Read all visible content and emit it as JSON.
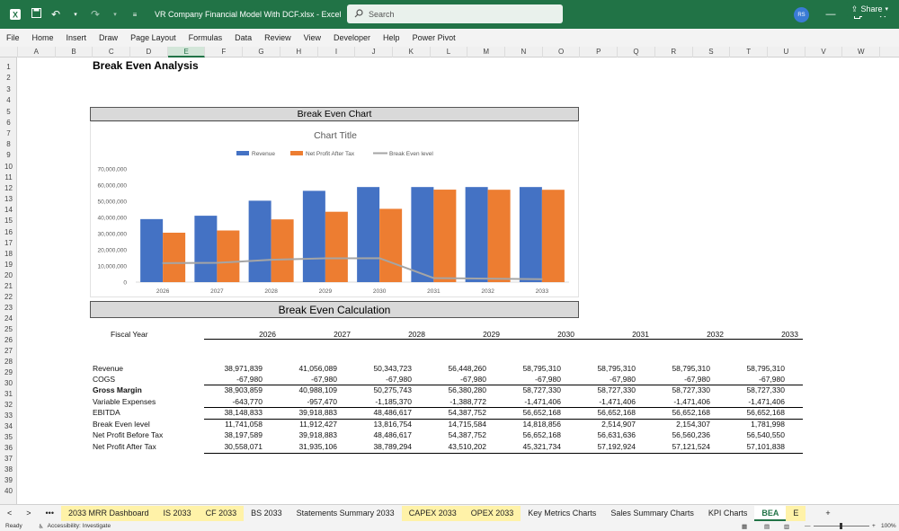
{
  "window": {
    "title": "VR Company  Financial Model With DCF.xlsx  -  Excel",
    "search_placeholder": "Search",
    "avatar_initials": "RS"
  },
  "ribbon": {
    "tabs": [
      "File",
      "Home",
      "Insert",
      "Draw",
      "Page Layout",
      "Formulas",
      "Data",
      "Review",
      "View",
      "Developer",
      "Help",
      "Power Pivot"
    ],
    "share_label": "Share"
  },
  "columns": [
    "A",
    "B",
    "C",
    "D",
    "E",
    "F",
    "G",
    "H",
    "I",
    "J",
    "K",
    "L",
    "M",
    "N",
    "O",
    "P",
    "Q",
    "R",
    "S",
    "T",
    "U",
    "V",
    "W"
  ],
  "selected_column": "E",
  "rows": [
    "1",
    "2",
    "3",
    "4",
    "5",
    "6",
    "7",
    "8",
    "9",
    "10",
    "11",
    "12",
    "13",
    "14",
    "15",
    "16",
    "17",
    "18",
    "19",
    "20",
    "21",
    "22",
    "23",
    "24",
    "25",
    "26",
    "27",
    "28",
    "29",
    "30",
    "31",
    "32",
    "33",
    "34",
    "35",
    "36",
    "37",
    "38",
    "39",
    "40"
  ],
  "sheet": {
    "title": "Break Even Analysis",
    "chart_section": "Break Even Chart",
    "calc_section": "Break Even Calculation"
  },
  "chart_data": {
    "type": "bar",
    "title": "Chart Title",
    "categories": [
      "2026",
      "2027",
      "2028",
      "2029",
      "2030",
      "2031",
      "2032",
      "2033"
    ],
    "ylim": [
      0,
      70000000
    ],
    "yticks": [
      "0",
      "10,000,000",
      "20,000,000",
      "30,000,000",
      "40,000,000",
      "50,000,000",
      "60,000,000",
      "70,000,000"
    ],
    "legend_position": "top",
    "grid": false,
    "series": [
      {
        "name": "Revenue",
        "type": "bar",
        "color": "#4472c4",
        "values": [
          38971839,
          41056089,
          50343723,
          56448260,
          58795310,
          58795310,
          58795310,
          58795310
        ]
      },
      {
        "name": "Net Profit After Tax",
        "type": "bar",
        "color": "#ed7d31",
        "values": [
          30558071,
          31935106,
          38789294,
          43510202,
          45321734,
          57192924,
          57121524,
          57101838
        ]
      },
      {
        "name": "Break Even level",
        "type": "line",
        "color": "#a5a5a5",
        "values": [
          11741058,
          11912427,
          13816754,
          14715584,
          14818856,
          2514907,
          2154307,
          1781998
        ]
      }
    ]
  },
  "table": {
    "header_label": "Fiscal Year",
    "years": [
      "2026",
      "2027",
      "2028",
      "2029",
      "2030",
      "2031",
      "2032",
      "2033"
    ],
    "rows": [
      {
        "label": "Revenue",
        "bold": false,
        "values": [
          "38,971,839",
          "41,056,089",
          "50,343,723",
          "56,448,260",
          "58,795,310",
          "58,795,310",
          "58,795,310",
          "58,795,310"
        ]
      },
      {
        "label": "COGS",
        "bold": false,
        "values": [
          "-67,980",
          "-67,980",
          "-67,980",
          "-67,980",
          "-67,980",
          "-67,980",
          "-67,980",
          "-67,980"
        ]
      },
      {
        "label": "Gross Margin",
        "bold": true,
        "values": [
          "38,903,859",
          "40,988,109",
          "50,275,743",
          "56,380,280",
          "58,727,330",
          "58,727,330",
          "58,727,330",
          "58,727,330"
        ]
      },
      {
        "label": "Variable Expenses",
        "bold": false,
        "values": [
          "-643,770",
          "-957,470",
          "-1,185,370",
          "-1,388,772",
          "-1,471,406",
          "-1,471,406",
          "-1,471,406",
          "-1,471,406"
        ]
      },
      {
        "label": "EBITDA",
        "bold": false,
        "values": [
          "38,148,833",
          "39,918,883",
          "48,486,617",
          "54,387,752",
          "56,652,168",
          "56,652,168",
          "56,652,168",
          "56,652,168"
        ]
      },
      {
        "label": "Break Even level",
        "bold": false,
        "values": [
          "11,741,058",
          "11,912,427",
          "13,816,754",
          "14,715,584",
          "14,818,856",
          "2,514,907",
          "2,154,307",
          "1,781,998"
        ]
      },
      {
        "label": "Net Profit Before Tax",
        "bold": false,
        "values": [
          "38,197,589",
          "39,918,883",
          "48,486,617",
          "54,387,752",
          "56,652,168",
          "56,631,636",
          "56,560,236",
          "56,540,550"
        ]
      },
      {
        "label": "Net Profit After Tax",
        "bold": false,
        "values": [
          "30,558,071",
          "31,935,106",
          "38,789,294",
          "43,510,202",
          "45,321,734",
          "57,192,924",
          "57,121,524",
          "57,101,838"
        ]
      }
    ]
  },
  "sheet_tabs": [
    {
      "label": "2033 MRR Dashboard",
      "style": "yel"
    },
    {
      "label": "IS 2033",
      "style": "yel"
    },
    {
      "label": "CF 2033",
      "style": "yel"
    },
    {
      "label": "BS 2033",
      "style": ""
    },
    {
      "label": "Statements Summary 2033",
      "style": ""
    },
    {
      "label": "CAPEX 2033",
      "style": "yel"
    },
    {
      "label": "OPEX 2033",
      "style": "yel"
    },
    {
      "label": "Key Metrics Charts",
      "style": ""
    },
    {
      "label": "Sales Summary Charts",
      "style": ""
    },
    {
      "label": "KPI Charts",
      "style": ""
    },
    {
      "label": "BEA",
      "style": "act"
    },
    {
      "label": "E",
      "style": "yel"
    }
  ],
  "tab_nav": {
    "prev": "<",
    "next": ">",
    "more": "•••",
    "add": "+"
  },
  "status": {
    "ready": "Ready",
    "accessibility": "Accessibility: Investigate",
    "zoom": "100%"
  }
}
